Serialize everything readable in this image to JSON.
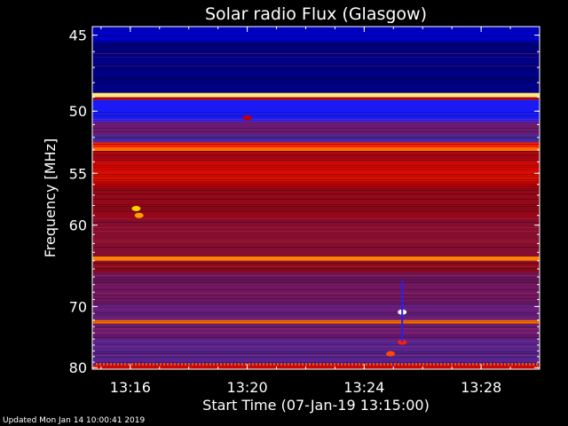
{
  "chart_data": {
    "type": "heatmap",
    "title": "Solar radio Flux (Glasgow)",
    "xlabel": "Start Time (07-Jan-19 13:15:00)",
    "ylabel": "Frequency [MHz]",
    "x_ticks": [
      "13:16",
      "13:20",
      "13:24",
      "13:28"
    ],
    "x_tick_minutes": [
      1,
      5,
      9,
      13
    ],
    "xlim_minutes": [
      -0.3,
      15.0
    ],
    "y_ticks": [
      45,
      50,
      55,
      60,
      70,
      80
    ],
    "ylim_mhz": [
      44.5,
      80.3
    ],
    "y_scale": "reciprocal",
    "colormap": [
      "#000040",
      "#0000c8",
      "#2020ff",
      "#4a2aa0",
      "#6a1a70",
      "#8a0a20",
      "#c00000",
      "#ff2000",
      "#ff7000",
      "#ffd000",
      "#ffffff"
    ],
    "bands": [
      {
        "from": 44.5,
        "to": 45.4,
        "level": 0.1
      },
      {
        "from": 45.4,
        "to": 48.7,
        "level": 0.05
      },
      {
        "from": 48.7,
        "to": 49.0,
        "level": 0.95
      },
      {
        "from": 49.0,
        "to": 49.2,
        "level": 0.55
      },
      {
        "from": 49.2,
        "to": 50.8,
        "level": 0.18
      },
      {
        "from": 50.8,
        "to": 51.8,
        "level": 0.4
      },
      {
        "from": 51.8,
        "to": 52.4,
        "level": 0.3
      },
      {
        "from": 52.4,
        "to": 52.8,
        "level": 0.7
      },
      {
        "from": 52.8,
        "to": 53.1,
        "level": 0.8
      },
      {
        "from": 53.1,
        "to": 54.0,
        "level": 0.55
      },
      {
        "from": 54.0,
        "to": 54.8,
        "level": 0.62
      },
      {
        "from": 54.8,
        "to": 55.8,
        "level": 0.64
      },
      {
        "from": 55.8,
        "to": 56.4,
        "level": 0.58
      },
      {
        "from": 56.4,
        "to": 59.4,
        "level": 0.52
      },
      {
        "from": 59.4,
        "to": 63.5,
        "level": 0.48
      },
      {
        "from": 63.5,
        "to": 64.0,
        "level": 0.82
      },
      {
        "from": 64.0,
        "to": 65.5,
        "level": 0.5
      },
      {
        "from": 65.5,
        "to": 69.5,
        "level": 0.42
      },
      {
        "from": 69.5,
        "to": 72.0,
        "level": 0.38
      },
      {
        "from": 72.0,
        "to": 72.6,
        "level": 0.8
      },
      {
        "from": 72.6,
        "to": 75.0,
        "level": 0.4
      },
      {
        "from": 75.0,
        "to": 79.5,
        "level": 0.34
      },
      {
        "from": 79.5,
        "to": 80.3,
        "level": 0.62
      }
    ],
    "events": [
      {
        "minute": 1.2,
        "mhz": 58.3,
        "level": 0.9
      },
      {
        "minute": 1.3,
        "mhz": 59.0,
        "level": 0.85
      },
      {
        "minute": 10.3,
        "mhz": 70.8,
        "level": 1.0
      },
      {
        "minute": 10.3,
        "mhz": 75.5,
        "level": 0.7
      },
      {
        "minute": 9.9,
        "mhz": 77.5,
        "level": 0.75
      },
      {
        "minute": 5.0,
        "mhz": 50.5,
        "level": 0.6
      }
    ],
    "grid": false
  },
  "footer": "Updated Mon Jan 14 10:00:41 2019"
}
